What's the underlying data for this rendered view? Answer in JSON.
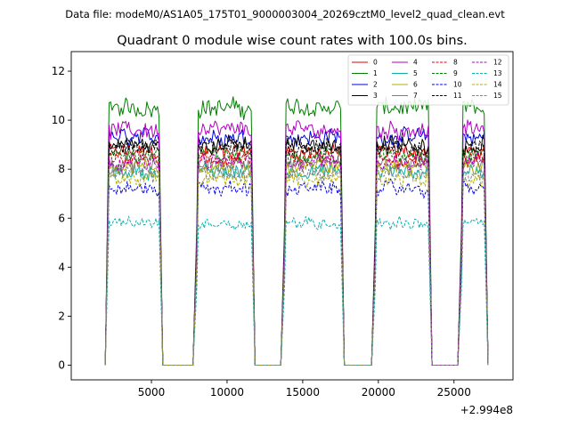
{
  "figure": {
    "suptitle": "Data file: modeM0/AS1A05_175T01_9000003004_20269cztM0_level2_quad_clean.evt"
  },
  "chart_data": {
    "type": "line",
    "title": "Quadrant 0 module wise count rates with 100.0s bins.",
    "xlabel": "",
    "ylabel": "",
    "offset_label": "+2.994e8",
    "xlim": [
      -300,
      28900
    ],
    "ylim": [
      -0.6,
      12.8
    ],
    "xticks": [
      5000,
      10000,
      15000,
      20000,
      25000
    ],
    "xtick_labels": [
      "5000",
      "10000",
      "15000",
      "20000",
      "25000"
    ],
    "yticks": [
      0,
      2,
      4,
      6,
      8,
      10,
      12
    ],
    "ytick_labels": [
      "0",
      "2",
      "4",
      "6",
      "8",
      "10",
      "12"
    ],
    "grid": false,
    "legend_position": "top-right",
    "segments": [
      [
        2200,
        5500
      ],
      [
        8000,
        11600
      ],
      [
        13800,
        17500
      ],
      [
        19800,
        23300
      ],
      [
        25500,
        27000
      ]
    ],
    "bin_seconds": 100,
    "series": [
      {
        "name": "0",
        "color": "#e00000",
        "dash": "solid",
        "level": 8.7
      },
      {
        "name": "1",
        "color": "#007f00",
        "dash": "solid",
        "level": 10.5
      },
      {
        "name": "2",
        "color": "#0000e0",
        "dash": "solid",
        "level": 9.3
      },
      {
        "name": "3",
        "color": "#000000",
        "dash": "solid",
        "level": 9.0
      },
      {
        "name": "4",
        "color": "#b000c0",
        "dash": "solid",
        "level": 9.6
      },
      {
        "name": "5",
        "color": "#10b0a0",
        "dash": "solid",
        "level": 7.9
      },
      {
        "name": "6",
        "color": "#b0b000",
        "dash": "solid",
        "level": 8.1
      },
      {
        "name": "7",
        "color": "#808080",
        "dash": "solid",
        "level": 8.2
      },
      {
        "name": "8",
        "color": "#e00000",
        "dash": "dashed",
        "level": 8.4
      },
      {
        "name": "9",
        "color": "#007f00",
        "dash": "dashed",
        "level": 8.6
      },
      {
        "name": "10",
        "color": "#0000e0",
        "dash": "dashed",
        "level": 7.2
      },
      {
        "name": "11",
        "color": "#000000",
        "dash": "dashed",
        "level": 8.9
      },
      {
        "name": "12",
        "color": "#b000c0",
        "dash": "dashed",
        "level": 8.3
      },
      {
        "name": "13",
        "color": "#10b0b0",
        "dash": "dashed",
        "level": 5.8
      },
      {
        "name": "14",
        "color": "#b0b000",
        "dash": "dashed",
        "level": 7.6
      },
      {
        "name": "15",
        "color": "#808080",
        "dash": "dashed",
        "level": 7.8
      }
    ]
  }
}
